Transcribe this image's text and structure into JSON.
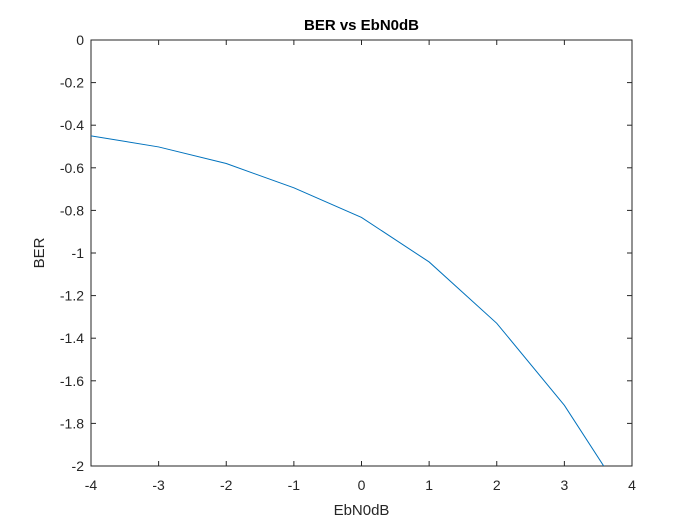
{
  "chart_data": {
    "type": "line",
    "title": "BER vs EbN0dB",
    "xlabel": "EbN0dB",
    "ylabel": "BER",
    "xlim": [
      -4,
      4
    ],
    "ylim": [
      -2,
      0
    ],
    "xticks": [
      "-4",
      "-3",
      "-2",
      "-1",
      "0",
      "1",
      "2",
      "3",
      "4"
    ],
    "yticks": [
      "0",
      "-0.2",
      "-0.4",
      "-0.6",
      "-0.8",
      "-1",
      "-1.2",
      "-1.4",
      "-1.6",
      "-1.8",
      "-2"
    ],
    "grid": false,
    "series": [
      {
        "color": "#0072BD",
        "x": [
          -4,
          -3,
          -2,
          -1,
          0,
          1,
          2,
          3,
          4
        ],
        "y": [
          -0.45,
          -0.502,
          -0.58,
          -0.694,
          -0.833,
          -1.042,
          -1.33,
          -1.715,
          -2.205
        ]
      }
    ]
  }
}
